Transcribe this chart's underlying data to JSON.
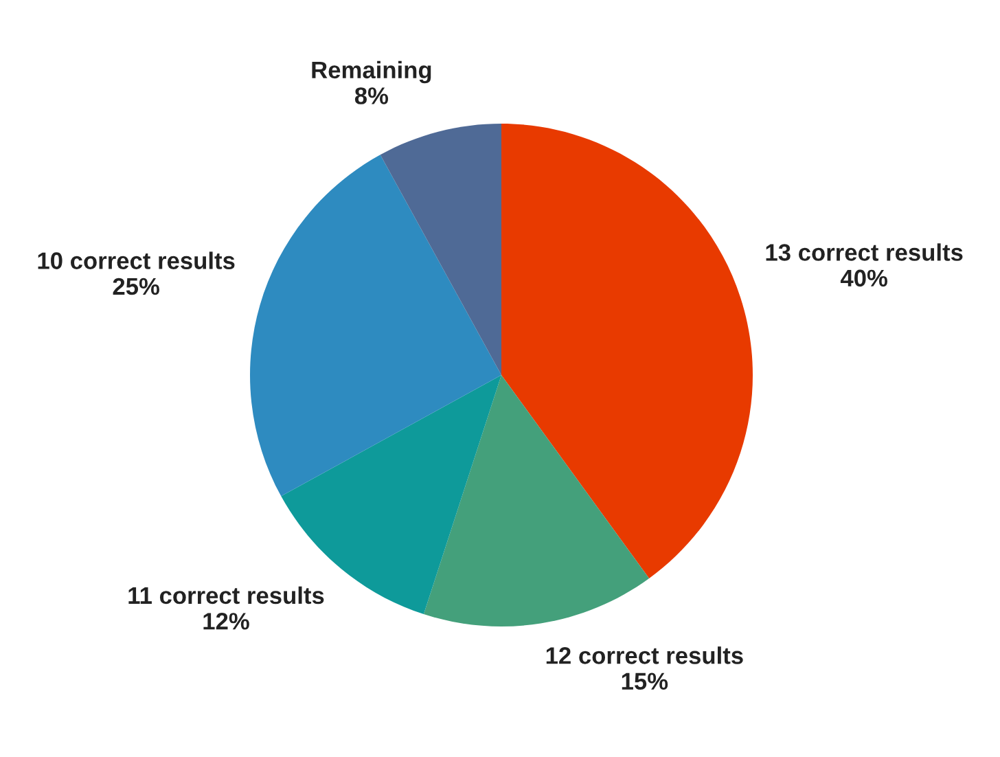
{
  "chart_data": {
    "type": "pie",
    "categories": [
      "13 correct results",
      "12 correct results",
      "11 correct results",
      "10 correct results",
      "Remaining"
    ],
    "values": [
      40,
      15,
      12,
      25,
      8
    ],
    "value_labels": [
      "40%",
      "15%",
      "12%",
      "25%",
      "8%"
    ],
    "colors": [
      "#e83a00",
      "#44a07b",
      "#0e9a9a",
      "#2e8bc0",
      "#4f6a96"
    ]
  }
}
